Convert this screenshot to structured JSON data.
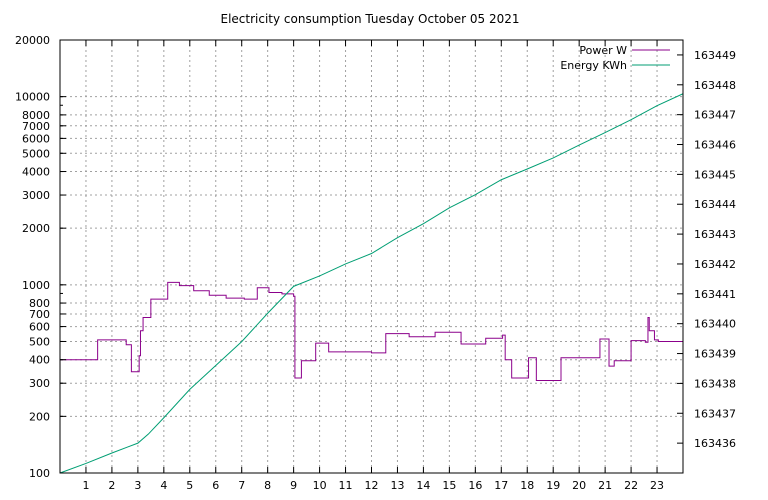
{
  "chart_data": {
    "type": "line",
    "title": "Electricity consumption Tuesday October 05 2021",
    "grid": true,
    "legend_position": "top-right",
    "x_axis": {
      "range": [
        0,
        24
      ],
      "ticks": [
        1,
        2,
        3,
        4,
        5,
        6,
        7,
        8,
        9,
        10,
        11,
        12,
        13,
        14,
        15,
        16,
        17,
        18,
        19,
        20,
        21,
        22,
        23
      ],
      "tick_labels": [
        "1",
        "2",
        "3",
        "4",
        "5",
        "6",
        "7",
        "8",
        "9",
        "10",
        "11",
        "12",
        "13",
        "14",
        "15",
        "16",
        "17",
        "18",
        "19",
        "20",
        "21",
        "22",
        "23"
      ]
    },
    "y_left": {
      "scale": "log",
      "range": [
        100,
        20000
      ],
      "ticks": [
        100,
        200,
        300,
        400,
        500,
        600,
        700,
        800,
        1000,
        2000,
        3000,
        4000,
        5000,
        6000,
        7000,
        8000,
        10000,
        20000
      ],
      "tick_labels": [
        "100",
        "200",
        "300",
        "400",
        "500",
        "600",
        "700",
        "800",
        "1000",
        "2000",
        "3000",
        "4000",
        "5000",
        "6000",
        "7000",
        "8000",
        "10000",
        "20000"
      ]
    },
    "y_right": {
      "scale": "linear",
      "range": [
        163435.0,
        163449.5
      ],
      "ticks": [
        163436,
        163437,
        163438,
        163439,
        163440,
        163441,
        163442,
        163443,
        163444,
        163445,
        163446,
        163447,
        163448,
        163449
      ],
      "tick_labels": [
        "163436",
        "163437",
        "163438",
        "163439",
        "163440",
        "163441",
        "163442",
        "163443",
        "163444",
        "163445",
        "163446",
        "163447",
        "163448",
        "163449"
      ]
    },
    "series": [
      {
        "name": "Power W",
        "axis": "left",
        "color": "#8b008b",
        "step": true,
        "x": [
          0,
          1.45,
          2.55,
          2.75,
          3.05,
          3.1,
          3.2,
          3.5,
          4.15,
          4.6,
          5.15,
          5.75,
          6.4,
          7.1,
          7.6,
          8.05,
          8.55,
          9.0,
          9.05,
          9.3,
          9.85,
          10.35,
          11.0,
          12.0,
          12.55,
          13.45,
          14.45,
          15.45,
          16.4,
          17.05,
          17.15,
          17.4,
          18.05,
          18.35,
          19.3,
          20.05,
          20.8,
          21.15,
          21.35,
          22.0,
          22.55,
          22.65,
          22.7,
          22.9,
          23.05,
          24.0
        ],
        "y": [
          400,
          510,
          480,
          345,
          420,
          570,
          670,
          840,
          1030,
          990,
          930,
          880,
          850,
          840,
          965,
          910,
          895,
          870,
          320,
          395,
          490,
          440,
          440,
          435,
          550,
          530,
          560,
          485,
          520,
          540,
          400,
          320,
          410,
          310,
          410,
          410,
          515,
          370,
          395,
          505,
          495,
          670,
          570,
          510,
          500,
          500
        ]
      },
      {
        "name": "Energy KWh",
        "axis": "right",
        "color": "#009e73",
        "step": false,
        "x": [
          0,
          1,
          2,
          3,
          3.4,
          4,
          5,
          6,
          7,
          8,
          9,
          10,
          11,
          12,
          13,
          14,
          15,
          16,
          17,
          18,
          19,
          20,
          21,
          22,
          23,
          24
        ],
        "y": [
          163435.0,
          163435.32,
          163435.67,
          163436.0,
          163436.3,
          163436.85,
          163437.8,
          163438.6,
          163439.4,
          163440.35,
          163441.25,
          163441.6,
          163442.0,
          163442.35,
          163442.88,
          163443.35,
          163443.88,
          163444.32,
          163444.82,
          163445.18,
          163445.55,
          163445.98,
          163446.4,
          163446.83,
          163447.3,
          163447.7
        ]
      }
    ]
  }
}
